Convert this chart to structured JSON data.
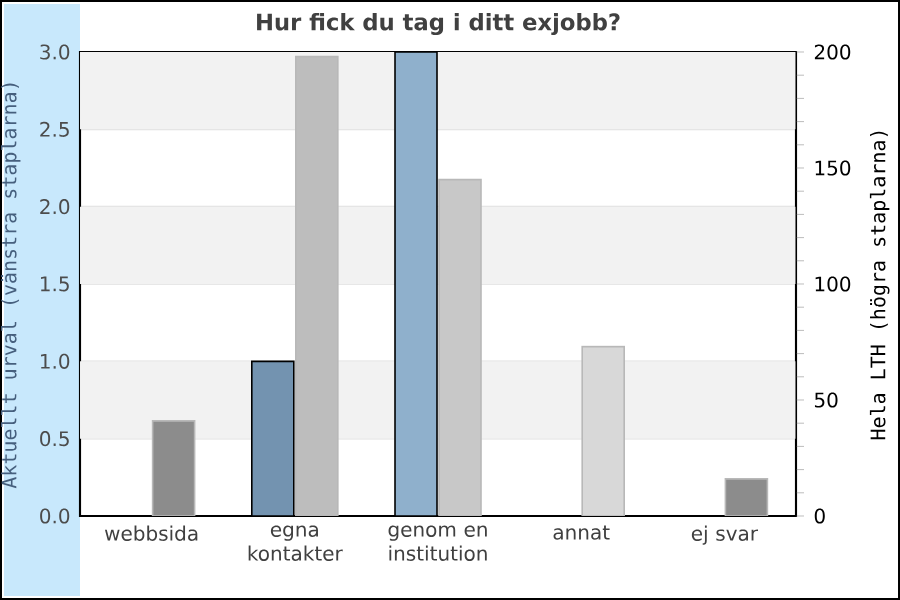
{
  "chart_data": {
    "type": "bar",
    "title": "Hur fick du tag i ditt exjobb?",
    "ylabel": "Aktuellt urval (vänstra staplarna)",
    "y2label": "Hela LTH (högra staplarna)",
    "categories": [
      "webbsida",
      "egna kontakter",
      "genom en institution",
      "annat",
      "ej svar"
    ],
    "series": [
      {
        "values": [
          0,
          1,
          3,
          0,
          0
        ],
        "colors": [
          "#7393b0",
          "#7393b0",
          "#8fb0cc",
          "#8fb0cc",
          "#8fb0cc"
        ]
      },
      {
        "axis": "y2",
        "values": [
          41,
          198,
          145,
          73,
          16
        ],
        "colors": [
          "#8c8c8c",
          "#bdbdbd",
          "#c8c8c8",
          "#d8d8d8",
          "#8c8c8c"
        ]
      }
    ],
    "ylim": [
      0,
      3
    ],
    "yticks": [
      {
        "value": 0,
        "label": "0.0"
      },
      {
        "value": 0.5,
        "label": "0.5"
      },
      {
        "value": 1,
        "label": "1.0"
      },
      {
        "value": 1.5,
        "label": "1.5"
      },
      {
        "value": 2,
        "label": "2.0"
      },
      {
        "value": 2.5,
        "label": "2.5"
      },
      {
        "value": 3,
        "label": "3.0"
      }
    ],
    "y2lim": [
      0,
      200
    ],
    "y2ticks": [
      0,
      {
        "value": 10,
        "label": null
      },
      {
        "value": 20,
        "label": null
      },
      {
        "value": 30,
        "label": null
      },
      {
        "value": 40,
        "label": null
      },
      50,
      {
        "value": 60,
        "label": null
      },
      {
        "value": 70,
        "label": null
      },
      {
        "value": 80,
        "label": null
      },
      {
        "value": 90,
        "label": null
      },
      100,
      {
        "value": 110,
        "label": null
      },
      {
        "value": 120,
        "label": null
      },
      {
        "value": 130,
        "label": null
      },
      {
        "value": 140,
        "label": null
      },
      150,
      {
        "value": 160,
        "label": null
      },
      {
        "value": 170,
        "label": null
      },
      {
        "value": 180,
        "label": null
      },
      {
        "value": 190,
        "label": null
      },
      200
    ],
    "grid": "y"
  }
}
